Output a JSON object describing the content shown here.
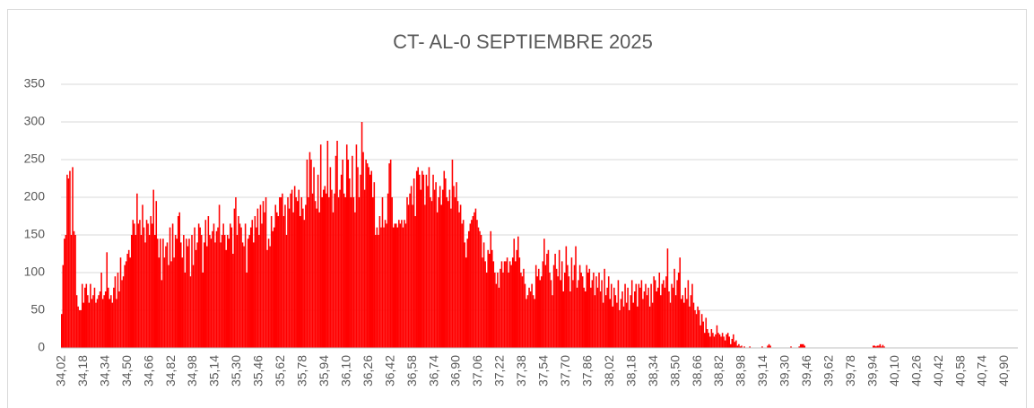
{
  "chart_data": {
    "type": "bar",
    "title": "CT- AL-0 SEPTIEMBRE 2025",
    "color": "#ff0000",
    "grid": true,
    "ylim": [
      0,
      350
    ],
    "yticks": [
      0,
      50,
      100,
      150,
      200,
      250,
      300,
      350
    ],
    "categories": [
      "34,02",
      null,
      null,
      null,
      null,
      null,
      null,
      null,
      null,
      null,
      null,
      null,
      null,
      null,
      null,
      null,
      "34,18",
      null,
      null,
      null,
      null,
      null,
      null,
      null,
      null,
      null,
      null,
      null,
      null,
      null,
      null,
      null,
      "34,34",
      null,
      null,
      null,
      null,
      null,
      null,
      null,
      null,
      null,
      null,
      null,
      null,
      null,
      null,
      null,
      "34,50",
      null,
      null,
      null,
      null,
      null,
      null,
      null,
      null,
      null,
      null,
      null,
      null,
      null,
      null,
      null,
      "34,66",
      null,
      null,
      null,
      null,
      null,
      null,
      null,
      null,
      null,
      null,
      null,
      null,
      null,
      null,
      null,
      "34,82",
      null,
      null,
      null,
      null,
      null,
      null,
      null,
      null,
      null,
      null,
      null,
      null,
      null,
      null,
      null,
      "34,98",
      null,
      null,
      null,
      null,
      null,
      null,
      null,
      null,
      null,
      null,
      null,
      null,
      null,
      null,
      null,
      "35,14",
      null,
      null,
      null,
      null,
      null,
      null,
      null,
      null,
      null,
      null,
      null,
      null,
      null,
      null,
      null,
      "35,30",
      null,
      null,
      null,
      null,
      null,
      null,
      null,
      null,
      null,
      null,
      null,
      null,
      null,
      null,
      null,
      "35,46",
      null,
      null,
      null,
      null,
      null,
      null,
      null,
      null,
      null,
      null,
      null,
      null,
      null,
      null,
      null,
      "35,62",
      null,
      null,
      null,
      null,
      null,
      null,
      null,
      null,
      null,
      null,
      null,
      null,
      null,
      null,
      null,
      "35,78",
      null,
      null,
      null,
      null,
      null,
      null,
      null,
      null,
      null,
      null,
      null,
      null,
      null,
      null,
      null,
      "35,94",
      null,
      null,
      null,
      null,
      null,
      null,
      null,
      null,
      null,
      null,
      null,
      null,
      null,
      null,
      null,
      "36,10",
      null,
      null,
      null,
      null,
      null,
      null,
      null,
      null,
      null,
      null,
      null,
      null,
      null,
      null,
      null,
      "36,26",
      null,
      null,
      null,
      null,
      null,
      null,
      null,
      null,
      null,
      null,
      null,
      null,
      null,
      null,
      null,
      "36,42",
      null,
      null,
      null,
      null,
      null,
      null,
      null,
      null,
      null,
      null,
      null,
      null,
      null,
      null,
      null,
      "36,58",
      null,
      null,
      null,
      null,
      null,
      null,
      null,
      null,
      null,
      null,
      null,
      null,
      null,
      null,
      null,
      "36,74",
      null,
      null,
      null,
      null,
      null,
      null,
      null,
      null,
      null,
      null,
      null,
      null,
      null,
      null,
      null,
      "36,90",
      null,
      null,
      null,
      null,
      null,
      null,
      null,
      null,
      null,
      null,
      null,
      null,
      null,
      null,
      null,
      "37,06",
      null,
      null,
      null,
      null,
      null,
      null,
      null,
      null,
      null,
      null,
      null,
      null,
      null,
      null,
      null,
      "37,22",
      null,
      null,
      null,
      null,
      null,
      null,
      null,
      null,
      null,
      null,
      null,
      null,
      null,
      null,
      null,
      "37,38",
      null,
      null,
      null,
      null,
      null,
      null,
      null,
      null,
      null,
      null,
      null,
      null,
      null,
      null,
      null,
      "37,54",
      null,
      null,
      null,
      null,
      null,
      null,
      null,
      null,
      null,
      null,
      null,
      null,
      null,
      null,
      null,
      "37,70",
      null,
      null,
      null,
      null,
      null,
      null,
      null,
      null,
      null,
      null,
      null,
      null,
      null,
      null,
      null,
      "37,86",
      null,
      null,
      null,
      null,
      null,
      null,
      null,
      null,
      null,
      null,
      null,
      null,
      null,
      null,
      null,
      "38,02",
      null,
      null,
      null,
      null,
      null,
      null,
      null,
      null,
      null,
      null,
      null,
      null,
      null,
      null,
      null,
      "38,18",
      null,
      null,
      null,
      null,
      null,
      null,
      null,
      null,
      null,
      null,
      null,
      null,
      null,
      null,
      null,
      "38,34",
      null,
      null,
      null,
      null,
      null,
      null,
      null,
      null,
      null,
      null,
      null,
      null,
      null,
      null,
      null,
      "38,50",
      null,
      null,
      null,
      null,
      null,
      null,
      null,
      null,
      null,
      null,
      null,
      null,
      null,
      null,
      null,
      "38,66",
      null,
      null,
      null,
      null,
      null,
      null,
      null,
      null,
      null,
      null,
      null,
      null,
      null,
      null,
      null,
      "38,82",
      null,
      null,
      null,
      null,
      null,
      null,
      null,
      null,
      null,
      null,
      null,
      null,
      null,
      null,
      null,
      "38,98",
      null,
      null,
      null,
      null,
      null,
      null,
      null,
      null,
      null,
      null,
      null,
      null,
      null,
      null,
      null,
      "39,14",
      null,
      null,
      null,
      null,
      null,
      null,
      null,
      null,
      null,
      null,
      null,
      null,
      null,
      null,
      null,
      "39,30",
      null,
      null,
      null,
      null,
      null,
      null,
      null,
      null,
      null,
      null,
      null,
      null,
      null,
      null,
      null,
      "39,46",
      null,
      null,
      null,
      null,
      null,
      null,
      null,
      null,
      null,
      null,
      null,
      null,
      null,
      null,
      null,
      "39,62",
      null,
      null,
      null,
      null,
      null,
      null,
      null,
      null,
      null,
      null,
      null,
      null,
      null,
      null,
      null,
      "39,78",
      null,
      null,
      null,
      null,
      null,
      null,
      null,
      null,
      null,
      null,
      null,
      null,
      null,
      null,
      null,
      "39,94",
      null,
      null,
      null,
      null,
      null,
      null,
      null,
      null,
      null,
      null,
      null,
      null,
      null,
      null,
      null,
      "40,10",
      null,
      null,
      null,
      null,
      null,
      null,
      null,
      null,
      null,
      null,
      null,
      null,
      null,
      null,
      null,
      "40,26",
      null,
      null,
      null,
      null,
      null,
      null,
      null,
      null,
      null,
      null,
      null,
      null,
      null,
      null,
      null,
      "40,42",
      null,
      null,
      null,
      null,
      null,
      null,
      null,
      null,
      null,
      null,
      null,
      null,
      null,
      null,
      null,
      "40,58",
      null,
      null,
      null,
      null,
      null,
      null,
      null,
      null,
      null,
      null,
      null,
      null,
      null,
      null,
      null,
      "40,74",
      null,
      null,
      null,
      null,
      null,
      null,
      null,
      null,
      null,
      null,
      null,
      null,
      null,
      null,
      null,
      "40,90",
      null,
      null,
      null,
      null,
      null,
      null,
      null,
      null,
      null
    ],
    "values": [
      45,
      110,
      145,
      150,
      230,
      225,
      235,
      150,
      240,
      155,
      150,
      70,
      55,
      50,
      50,
      85,
      60,
      80,
      85,
      70,
      60,
      85,
      65,
      70,
      80,
      60,
      65,
      70,
      75,
      100,
      65,
      70,
      75,
      127,
      80,
      65,
      70,
      60,
      80,
      95,
      65,
      100,
      75,
      120,
      90,
      95,
      110,
      115,
      125,
      130,
      120,
      150,
      170,
      165,
      150,
      205,
      165,
      170,
      150,
      190,
      160,
      140,
      170,
      165,
      150,
      175,
      165,
      210,
      150,
      195,
      145,
      120,
      145,
      90,
      145,
      120,
      135,
      140,
      110,
      160,
      115,
      165,
      120,
      150,
      145,
      175,
      180,
      140,
      120,
      150,
      100,
      145,
      135,
      145,
      95,
      150,
      110,
      160,
      130,
      140,
      165,
      160,
      150,
      100,
      140,
      170,
      135,
      175,
      150,
      145,
      155,
      165,
      140,
      155,
      160,
      190,
      140,
      150,
      165,
      150,
      130,
      150,
      145,
      165,
      160,
      125,
      185,
      200,
      150,
      175,
      165,
      160,
      140,
      135,
      165,
      100,
      145,
      150,
      160,
      170,
      140,
      175,
      160,
      185,
      150,
      190,
      165,
      195,
      180,
      200,
      130,
      145,
      135,
      175,
      155,
      160,
      190,
      180,
      175,
      200,
      200,
      205,
      175,
      190,
      150,
      200,
      185,
      205,
      210,
      180,
      215,
      200,
      195,
      210,
      175,
      200,
      185,
      170,
      190,
      250,
      200,
      260,
      250,
      205,
      240,
      195,
      185,
      230,
      180,
      270,
      200,
      210,
      215,
      205,
      275,
      200,
      240,
      210,
      180,
      205,
      255,
      275,
      200,
      210,
      230,
      250,
      205,
      200,
      270,
      250,
      225,
      200,
      255,
      200,
      180,
      270,
      240,
      200,
      230,
      300,
      260,
      210,
      250,
      245,
      240,
      230,
      235,
      200,
      220,
      150,
      160,
      150,
      175,
      160,
      200,
      160,
      170,
      165,
      205,
      245,
      250,
      200,
      160,
      165,
      165,
      160,
      170,
      165,
      170,
      160,
      170,
      165,
      200,
      190,
      205,
      215,
      190,
      225,
      175,
      235,
      240,
      230,
      210,
      235,
      230,
      190,
      230,
      215,
      240,
      200,
      195,
      230,
      210,
      220,
      180,
      200,
      215,
      190,
      210,
      235,
      225,
      200,
      195,
      210,
      185,
      250,
      215,
      200,
      220,
      195,
      180,
      190,
      165,
      170,
      140,
      120,
      145,
      155,
      165,
      170,
      175,
      180,
      185,
      170,
      160,
      155,
      150,
      120,
      140,
      115,
      100,
      130,
      125,
      155,
      130,
      115,
      100,
      85,
      100,
      80,
      105,
      115,
      100,
      115,
      115,
      120,
      100,
      115,
      110,
      120,
      145,
      115,
      130,
      148,
      120,
      100,
      95,
      105,
      85,
      65,
      70,
      80,
      75,
      85,
      70,
      65,
      110,
      95,
      105,
      90,
      95,
      115,
      145,
      110,
      125,
      130,
      100,
      90,
      70,
      110,
      125,
      105,
      95,
      130,
      90,
      115,
      75,
      100,
      135,
      110,
      95,
      75,
      120,
      90,
      110,
      135,
      80,
      90,
      110,
      100,
      95,
      80,
      75,
      110,
      100,
      105,
      80,
      90,
      100,
      70,
      95,
      80,
      100,
      75,
      90,
      60,
      105,
      70,
      80,
      95,
      65,
      85,
      55,
      80,
      70,
      60,
      90,
      50,
      65,
      75,
      55,
      85,
      60,
      80,
      50,
      70,
      90,
      60,
      75,
      85,
      55,
      85,
      80,
      90,
      65,
      75,
      85,
      70,
      80,
      55,
      85,
      60,
      95,
      90,
      75,
      80,
      100,
      70,
      85,
      90,
      80,
      95,
      132,
      75,
      60,
      85,
      80,
      105,
      70,
      90,
      100,
      120,
      65,
      70,
      60,
      80,
      65,
      90,
      55,
      70,
      85,
      60,
      50,
      45,
      55,
      50,
      30,
      45,
      35,
      20,
      40,
      25,
      20,
      15,
      25,
      20,
      15,
      18,
      30,
      20,
      18,
      15,
      20,
      15,
      10,
      18,
      20,
      15,
      5,
      12,
      18,
      8,
      10,
      3,
      5,
      2,
      3,
      0,
      2,
      0,
      0,
      0,
      2,
      0,
      0,
      0,
      0,
      0,
      0,
      0,
      0,
      2,
      0,
      0,
      0,
      3,
      5,
      3,
      0,
      0,
      0,
      0,
      0,
      0,
      0,
      0,
      0,
      0,
      0,
      0,
      0,
      0,
      2,
      0,
      0,
      0,
      0,
      0,
      2,
      5,
      5,
      5,
      3,
      0,
      0,
      0,
      0,
      0,
      0,
      0,
      0,
      0,
      0,
      0,
      0,
      0,
      0,
      0,
      0,
      0,
      0,
      0,
      0,
      0,
      0,
      0,
      0,
      0,
      0,
      0,
      0,
      0,
      0,
      0,
      0,
      0,
      0,
      0,
      0,
      0,
      0,
      0,
      0,
      0,
      0,
      0,
      0,
      0,
      0,
      0,
      0,
      0,
      3,
      3,
      2,
      3,
      3,
      5,
      2,
      4,
      2,
      0,
      0,
      0,
      0,
      0,
      0,
      0,
      0,
      0,
      0,
      0,
      0,
      0,
      0,
      0,
      0,
      0,
      0,
      0,
      0,
      0,
      0,
      0,
      0,
      0,
      0,
      0,
      0,
      0,
      0,
      0,
      0,
      0,
      0,
      0,
      0,
      0,
      0,
      0,
      0,
      0,
      0,
      0,
      0,
      0,
      0,
      0,
      0,
      0,
      0,
      0,
      0,
      0,
      0,
      0,
      0,
      0,
      0,
      0,
      0,
      0,
      0,
      0,
      0,
      0,
      0,
      0,
      0,
      0,
      0,
      0,
      0,
      0,
      0,
      0,
      0,
      0,
      0,
      0,
      0,
      0,
      0,
      0,
      0,
      0,
      0,
      0,
      0,
      0,
      0,
      0,
      0,
      0,
      0,
      0,
      0,
      0
    ]
  }
}
